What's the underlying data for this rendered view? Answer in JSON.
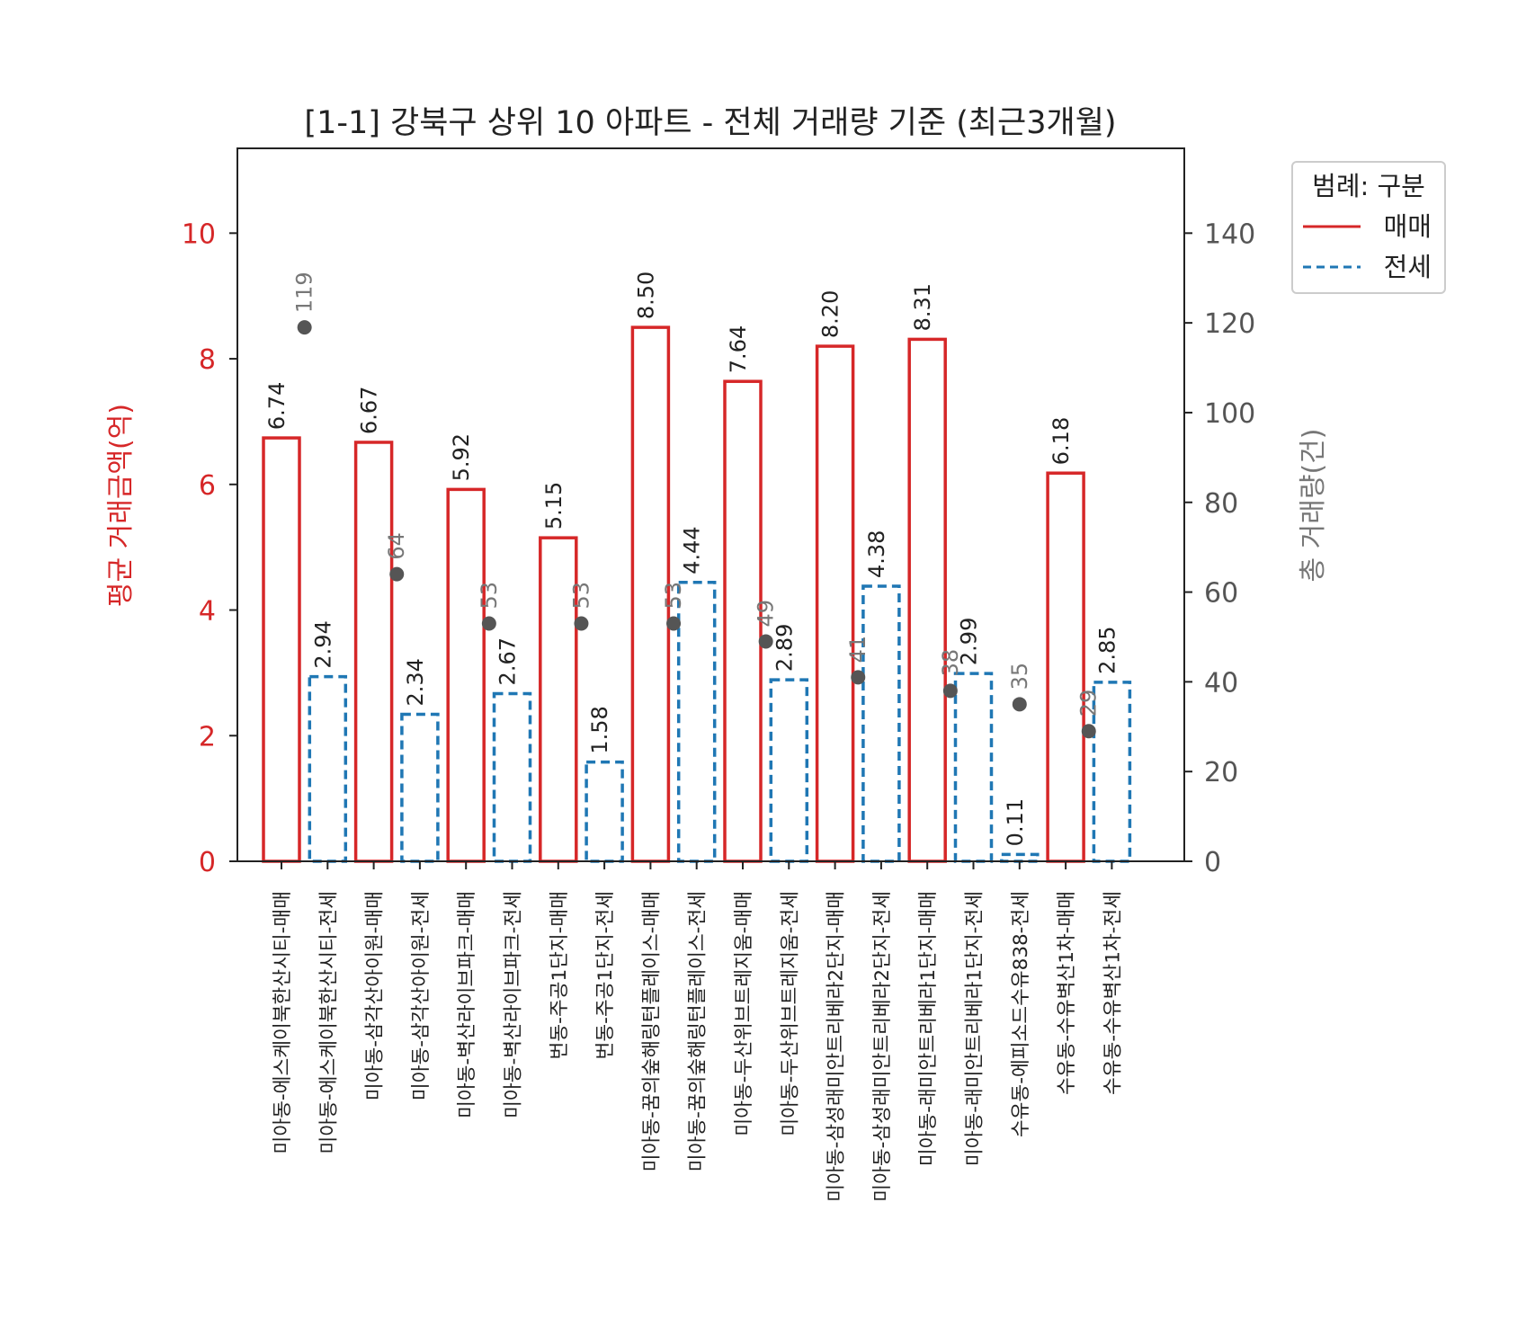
{
  "chart_data": {
    "type": "bar",
    "title": "[1-1] 강북구 상위 10 아파트 - 전체 거래량 기준 (최근3개월)",
    "ylabel": "평균 거래금액(억)",
    "y2label": "총 거래량(건)",
    "ylim": [
      0,
      11.35
    ],
    "y2lim": [
      0,
      158.9
    ],
    "yticks": [
      0,
      2,
      4,
      6,
      8,
      10
    ],
    "y2ticks": [
      0,
      20,
      40,
      60,
      80,
      100,
      120,
      140
    ],
    "grid": false,
    "legend_position": "outside-top-right",
    "legend": {
      "title": "범례: 구분",
      "entries": [
        {
          "label": "매매",
          "style": "solid",
          "color": "#d62728"
        },
        {
          "label": "전세",
          "style": "dashed",
          "color": "#1f77b4"
        }
      ]
    },
    "colors": {
      "sale": "#d62728",
      "lease": "#1f77b4",
      "count_marker": "#555555",
      "count_label": "#777777",
      "axis_left": "#d62728",
      "axis_right": "#555555"
    },
    "categories": [
      "미아동-에스케이북한산시티-매매",
      "미아동-에스케이북한산시티-전세",
      "미아동-삼각산아이원-매매",
      "미아동-삼각산아이원-전세",
      "미아동-벽산라이브파크-매매",
      "미아동-벽산라이브파크-전세",
      "번동-주공1단지-매매",
      "번동-주공1단지-전세",
      "미아동-꿈의숲해링턴플레이스-매매",
      "미아동-꿈의숲해링턴플레이스-전세",
      "미아동-두산위브트레지움-매매",
      "미아동-두산위브트레지움-전세",
      "미아동-삼성래미안트리베라2단지-매매",
      "미아동-삼성래미안트리베라2단지-전세",
      "미아동-래미안트리베라1단지-매매",
      "미아동-래미안트리베라1단지-전세",
      "수유동-에피소드수유838-전세",
      "수유동-수유벽산1차-매매",
      "수유동-수유벽산1차-전세"
    ],
    "bar_types": [
      "매매",
      "전세",
      "매매",
      "전세",
      "매매",
      "전세",
      "매매",
      "전세",
      "매매",
      "전세",
      "매매",
      "전세",
      "매매",
      "전세",
      "매매",
      "전세",
      "전세",
      "매매",
      "전세"
    ],
    "values": [
      6.74,
      2.94,
      6.67,
      2.34,
      5.92,
      2.67,
      5.15,
      1.58,
      8.5,
      4.44,
      7.64,
      2.89,
      8.2,
      4.38,
      8.31,
      2.99,
      0.11,
      6.18,
      2.85
    ],
    "value_labels": [
      "6.74",
      "2.94",
      "6.67",
      "2.34",
      "5.92",
      "2.67",
      "5.15",
      "1.58",
      "8.50",
      "4.44",
      "7.64",
      "2.89",
      "8.20",
      "4.38",
      "8.31",
      "2.99",
      "0.11",
      "6.18",
      "2.85"
    ],
    "counts": [
      {
        "pos": 0.5,
        "value": 119
      },
      {
        "pos": 2.5,
        "value": 64
      },
      {
        "pos": 4.5,
        "value": 53
      },
      {
        "pos": 6.5,
        "value": 53
      },
      {
        "pos": 8.5,
        "value": 53
      },
      {
        "pos": 10.5,
        "value": 49
      },
      {
        "pos": 12.5,
        "value": 41
      },
      {
        "pos": 14.5,
        "value": 38
      },
      {
        "pos": 16,
        "value": 35
      },
      {
        "pos": 17.5,
        "value": 29
      }
    ]
  }
}
